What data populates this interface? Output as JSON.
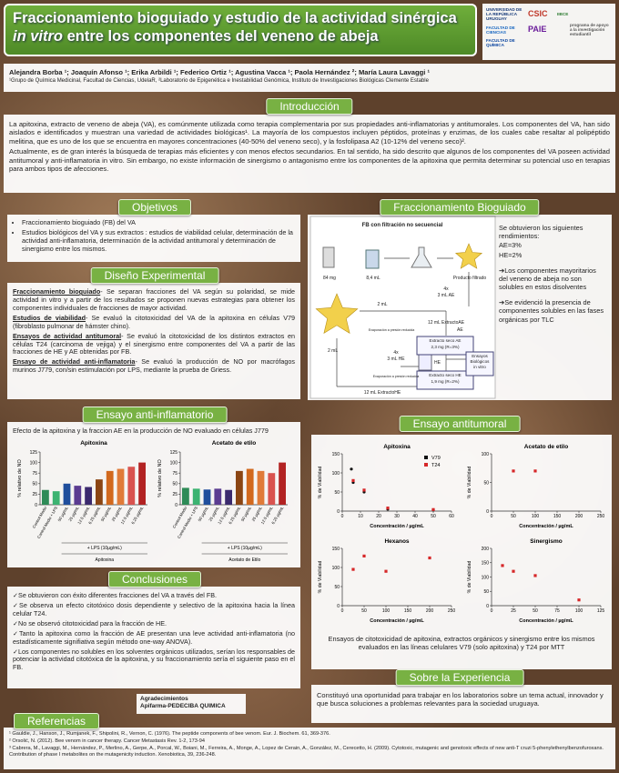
{
  "header": {
    "title_parts": [
      "Fraccionamiento bioguiado y estudio de la actividad sinérgica ",
      "in vitro",
      " entre los componentes del veneno de abeja"
    ],
    "logos": [
      "UNIVERSIDAD DE LA REPÚBLICA URUGUAY",
      "CSIC",
      "IIBCE",
      "FACULTAD DE CIENCIAS",
      "PAIE",
      "programa de apoyo a la investigación estudiantil",
      "FACULTAD DE QUÍMICA"
    ]
  },
  "authors": {
    "names": "Alejandra Borba ¹; Joaquín Afonso ¹; Erika Arbildi ¹; Federico Ortiz ¹; Agustina Vacca ¹; Paola Hernández ²; María Laura Lavaggi ¹",
    "affiliations": "¹Grupo de Química Medicinal, Facultad de Ciencias, UdelaR, ²Laboratorio de Epigenética e Inestabilidad Genómica, Instituto de Investigaciones Biológicas Clemente Estable"
  },
  "introduccion": {
    "heading": "Introducción",
    "paragraphs": [
      "La apitoxina, extracto de veneno de abeja (VA), es comúnmente utilizada como terapia complementaria por sus propiedades anti-inflamatorias y antitumorales. Los componentes del VA, han sido aislados e identificados y muestran una variedad de actividades biológicas¹. La mayoría de los compuestos incluyen péptidos, proteínas y enzimas, de los cuales cabe resaltar al polipéptido melitina, que es uno de los que se encuentra en mayores concentraciones (40-50% del veneno seco), y la fosfolipasa A2 (10-12% del veneno seco)².",
      "Actualmente, es de gran interés la búsqueda de terapias más eficientes y con menos efectos secundarios. En tal sentido, ha sido descrito que algunos de los componentes del VA poseen actividad antitumoral y anti-inflamatoria in vitro. Sin embargo, no existe información de sinergismo o antagonismo entre los componentes de la apitoxina que permita determinar su potencial uso en terapias para ambos tipos de afecciones."
    ]
  },
  "objetivos": {
    "heading": "Objetivos",
    "items": [
      "Fraccionamiento bioguiado (FB) del VA",
      "Estudios biológicos del VA y sus extractos : estudios de viabilidad celular, determinación de la actividad anti-inflamatoria, determinación de la actividad antitumoral y determinación de sinergismo entre los mismos."
    ]
  },
  "diseno": {
    "heading": "Diseño Experimental",
    "items": [
      {
        "label": "Fraccionamiento bioguiado",
        "text": "- Se separan fracciones del VA según su polaridad, se mide actividad in vitro y a partir de los resultados se proponen nuevas estrategias para obtener los componentes individuales de fracciones de mayor actividad."
      },
      {
        "label": "Estudios de viabilidad",
        "text": "- Se evaluó la citotoxicidad del VA de la apitoxina en células V79 (fibroblasto pulmonar de hámster chino)."
      },
      {
        "label": "Ensayos de actividad antitumoral",
        "text": "- Se evaluó la citotoxicidad de los distintos extractos en células T24 (carcinoma de vejiga) y el sinergismo entre componentes del VA a partir de las fracciones de HE y AE obtenidas por FB."
      },
      {
        "label": "Ensayo de actividad anti-inflamatoria",
        "text": "- Se evaluó la producción de NO por macrófagos murinos J779, con/sin estimulación por LPS, mediante la prueba de Griess."
      }
    ]
  },
  "fraccionamiento": {
    "heading": "Fraccionamiento Bioguiado",
    "diagram_labels": [
      "FB con filtración no secuencial",
      "84 mg",
      "8,4 mL",
      "Producto filtrado",
      "4x",
      "3 mL AE",
      "2 mL",
      "12 mL ExtractoAE",
      "AE",
      "Extracto seco AE",
      "2,3 mg (R=3%)",
      "2 mL",
      "4x",
      "3 mL HE",
      "HE",
      "Extracto seco HE",
      "1,9 mg (R=2%)",
      "Ensayos",
      "Biológicos",
      "in vitro",
      "12 mL ExtractoHE",
      "Evaporación a presión reducida",
      "Evaporación a presión reducida"
    ],
    "text": [
      "Se obtuvieron los siguientes rendimientos:",
      "AE=3%",
      "HE=2%",
      "➔Los componentes mayoritarios del veneno de abeja no son solubles en estos disolventes",
      "➔Se evidenció la presencia de componentes solubles en las fases orgánicas por TLC"
    ]
  },
  "anti_inflamatorio": {
    "heading": "Ensayo anti-inflamatorio",
    "caption": "Efecto de la apitoxina y la fraccion AE en la producción de NO evaluado en células J779"
  },
  "antitumoral": {
    "heading": "Ensayo antitumoral",
    "caption": "Ensayos de citotoxicidad de apitoxina, extractos orgánicos y sinergismo entre los mismos evaluados en las líneas celulares V79 (solo apitoxina) y T24 por MTT"
  },
  "conclusiones": {
    "heading": "Conclusiones",
    "items": [
      "✓Se obtuvieron con éxito diferentes fracciones del VA a través del FB.",
      "✓Se observa un efecto citotóxico dosis dependiente y selectivo de la apitoxina hacia la línea celular T24.",
      "✓No se observó citotoxicidad para la fracción de HE.",
      "✓Tanto la apitoxina como la fracción de AE presentan una leve actividad anti-inflamatoria (no estadísticamente signifiativa según método one-way ANOVA).",
      "✓Los componentes no solubles en los solventes orgánicos utilizados, serían los responsables de potenciar la actividad citotóxica de la apitoxina, y su fraccionamiento sería el siguiente paso en el FB."
    ]
  },
  "agradecimientos": {
    "heading": "Agradecimientos",
    "text": "Apifarma-PEDECIBA QUIMICA"
  },
  "experiencia": {
    "heading": "Sobre la Experiencia",
    "text": "Constituyó una oportunidad para trabajar en los laboratorios sobre un tema actual, innovador y que busca soluciones a problemas relevantes para la sociedad uruguaya."
  },
  "referencias": {
    "heading": "Referencias",
    "items": [
      "¹ Gauldie, J., Hanson, J., Rumjanek, F., Shipolini, R., Vernon, C. (1976). The peptide components of bee venom. Eur. J. Biochem. 61, 369-376.",
      "² Orsolić, N. (2012). Bee venom in cancer therapy. Cancer Metastasis Rev. 1-2, 173-94",
      "³ Cabrera, M., Lavaggi, M., Hernández, P., Merlino, A., Gerpe, A., Porcal, W., Boiani, M., Ferreira, A., Monge, A., Lopez de Cerain, A., González, M., Cerecetto, H. (2009). Cytotoxic, mutagenic and genotoxic effects of new anti-T cruzi 5-phenylethenylbenzofuroxans. Contribution of phase I metabolites on the mutagenicity induction. Xenobiotica, 39, 236-248."
    ]
  },
  "chart_data": [
    {
      "type": "bar",
      "title": "Apitoxina",
      "ylabel": "% relativo de NO",
      "categories": [
        "Control Medio",
        "Control Medio + LPS",
        "50 µg/mL",
        "25 µg/mL",
        "12.5 µg/mL",
        "6.25 µg/mL",
        "50 µg/mL",
        "25 µg/mL",
        "12.5 µg/mL",
        "6.25 µg/mL"
      ],
      "values": [
        35,
        32,
        50,
        45,
        42,
        60,
        80,
        85,
        90,
        100
      ],
      "colors": [
        "#2e8b57",
        "#3cb371",
        "#1f4e9c",
        "#5b3c91",
        "#3b2a6e",
        "#8b4513",
        "#d2691e",
        "#e07b39",
        "#d9534f",
        "#b22222"
      ],
      "ylim": [
        0,
        125
      ],
      "yticks": [
        0,
        25,
        50,
        75,
        100,
        125
      ],
      "annotation": "+ LPS (10µg/mL)",
      "xlabel": "Apitoxina"
    },
    {
      "type": "bar",
      "title": "Acetato de etilo",
      "ylabel": "% relativo de NO",
      "categories": [
        "Control Medio",
        "Control Medio + LPS",
        "50 µg/mL",
        "25 µg/mL",
        "12.5 µg/mL",
        "6.25 µg/mL",
        "50 µg/mL",
        "25 µg/mL",
        "12.5 µg/mL",
        "6.25 µg/mL"
      ],
      "values": [
        40,
        38,
        36,
        38,
        35,
        80,
        85,
        80,
        75,
        100
      ],
      "colors": [
        "#2e8b57",
        "#3cb371",
        "#1f4e9c",
        "#5b3c91",
        "#3b2a6e",
        "#8b4513",
        "#d2691e",
        "#e07b39",
        "#d9534f",
        "#b22222"
      ],
      "ylim": [
        0,
        125
      ],
      "yticks": [
        0,
        25,
        50,
        75,
        100,
        125
      ],
      "annotation": "+ LPS (10µg/mL)",
      "xlabel": "Acetato de Etilo"
    },
    {
      "type": "scatter",
      "title": "Apitoxina",
      "xlabel": "Concentración / µg/mL",
      "ylabel": "% de Viabilidad",
      "xlim": [
        0,
        60
      ],
      "xticks": [
        0,
        10,
        20,
        30,
        40,
        50,
        60
      ],
      "ylim": [
        0,
        150
      ],
      "yticks": [
        0,
        50,
        100,
        150
      ],
      "legend": true,
      "series": [
        {
          "name": "V79",
          "color": "#111111",
          "x": [
            5,
            6,
            12,
            25,
            50
          ],
          "values": [
            110,
            75,
            50,
            5,
            3
          ]
        },
        {
          "name": "T24",
          "color": "#d62728",
          "x": [
            6,
            12,
            25,
            50
          ],
          "values": [
            80,
            55,
            8,
            4
          ]
        }
      ]
    },
    {
      "type": "scatter",
      "title": "Acetato de etilo",
      "xlabel": "Concentración / µg/mL",
      "ylabel": "% de Viabilidad",
      "xlim": [
        0,
        250
      ],
      "xticks": [
        0,
        50,
        100,
        150,
        200,
        250
      ],
      "ylim": [
        0,
        100
      ],
      "yticks": [
        0,
        50,
        100
      ],
      "series": [
        {
          "color": "#d62728",
          "x": [
            50,
            100
          ],
          "values": [
            70,
            70
          ]
        }
      ]
    },
    {
      "type": "scatter",
      "title": "Hexanos",
      "xlabel": "Concentración / µg/mL",
      "ylabel": "% de Viabilidad",
      "xlim": [
        0,
        250
      ],
      "xticks": [
        0,
        50,
        100,
        150,
        200,
        250
      ],
      "ylim": [
        0,
        150
      ],
      "yticks": [
        0,
        50,
        100,
        150
      ],
      "series": [
        {
          "color": "#d62728",
          "x": [
            25,
            50,
            100,
            200
          ],
          "values": [
            95,
            130,
            90,
            125
          ]
        }
      ]
    },
    {
      "type": "scatter",
      "title": "Sinergismo",
      "xlabel": "Concentración / µg/mL",
      "ylabel": "% de Viabilidad",
      "xlim": [
        0,
        125
      ],
      "xticks": [
        0,
        25,
        50,
        75,
        100,
        125
      ],
      "ylim": [
        0,
        200
      ],
      "yticks": [
        0,
        50,
        100,
        150,
        200
      ],
      "series": [
        {
          "color": "#d62728",
          "x": [
            12.5,
            25,
            50,
            100
          ],
          "values": [
            140,
            120,
            105,
            20
          ]
        }
      ]
    }
  ]
}
